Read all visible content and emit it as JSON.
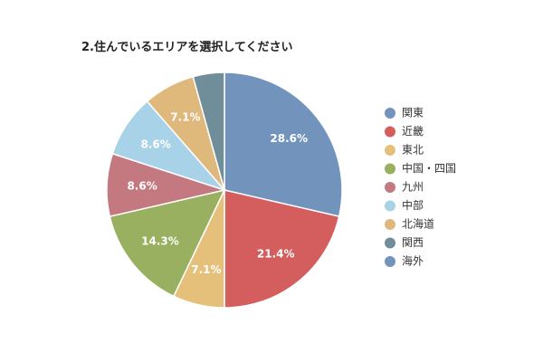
{
  "chart_data": {
    "type": "pie",
    "title": "2.住んでいるエリアを選択してください",
    "legend_position": "right",
    "slices": [
      {
        "label": "関東",
        "value": 28.6,
        "display": "28.6%",
        "color": "#7293bb"
      },
      {
        "label": "近畿",
        "value": 21.4,
        "display": "21.4%",
        "color": "#d45d5d"
      },
      {
        "label": "東北",
        "value": 7.1,
        "display": "7.1%",
        "color": "#e5c07b"
      },
      {
        "label": "中国・四国",
        "value": 14.3,
        "display": "14.3%",
        "color": "#98b060"
      },
      {
        "label": "九州",
        "value": 8.6,
        "display": "8.6%",
        "color": "#c47880"
      },
      {
        "label": "中部",
        "value": 8.6,
        "display": "8.6%",
        "color": "#a8d2e8"
      },
      {
        "label": "北海道",
        "value": 7.1,
        "display": "7.1%",
        "color": "#dfb87c"
      },
      {
        "label": "関西",
        "value": 4.3,
        "display": "",
        "color": "#6f8e99"
      },
      {
        "label": "海外",
        "value": 0,
        "display": "",
        "color": "#7293bb"
      }
    ]
  }
}
